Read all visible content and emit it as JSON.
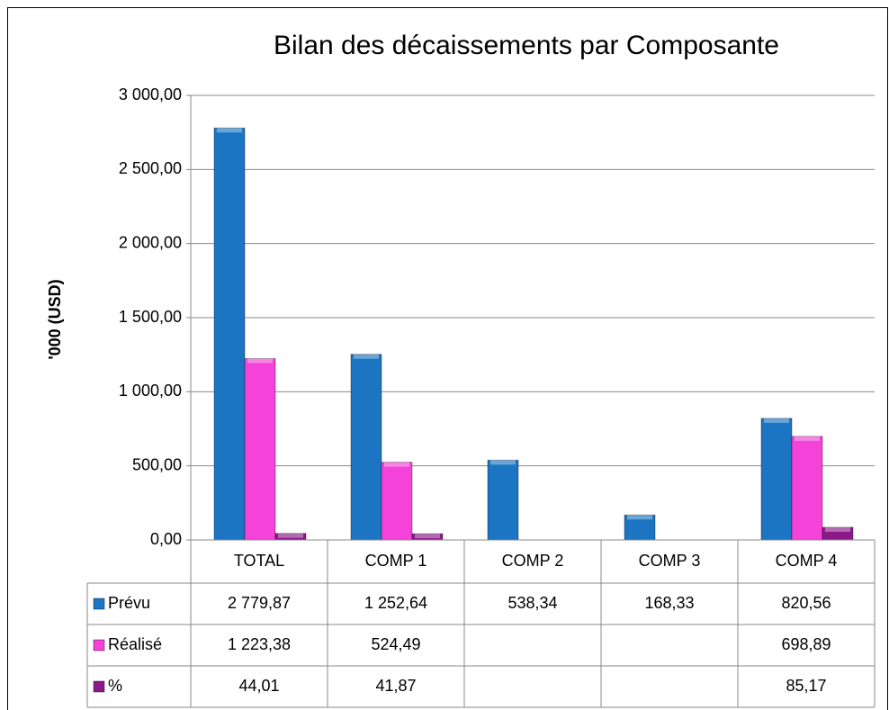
{
  "chart_data": {
    "type": "bar",
    "title": "Bilan des décaissements par Composante",
    "y_label": "'000 (USD)",
    "categories": [
      "TOTAL",
      "COMP 1",
      "COMP 2",
      "COMP 3",
      "COMP 4"
    ],
    "series": [
      {
        "name": "Prévu",
        "color": "#1b75c2",
        "values": [
          2779.87,
          1252.64,
          538.34,
          168.33,
          820.56
        ],
        "value_labels": [
          "2 779,87",
          "1 252,64",
          "538,34",
          "168,33",
          "820,56"
        ]
      },
      {
        "name": "Réalisé",
        "color": "#f542d9",
        "values": [
          1223.38,
          524.49,
          null,
          null,
          698.89
        ],
        "value_labels": [
          "1 223,38",
          "524,49",
          null,
          null,
          "698,89"
        ]
      },
      {
        "name": "%",
        "color": "#8a1a88",
        "values": [
          44.01,
          41.87,
          null,
          null,
          85.17
        ],
        "value_labels": [
          "44,01",
          "41,87",
          null,
          null,
          "85,17"
        ]
      }
    ],
    "ylim": [
      0,
      3000
    ],
    "yticks": [
      {
        "value": 0,
        "label": "0,00"
      },
      {
        "value": 500,
        "label": "500,00"
      },
      {
        "value": 1000,
        "label": "1 000,00"
      },
      {
        "value": 1500,
        "label": "1 500,00"
      },
      {
        "value": 2000,
        "label": "2 000,00"
      },
      {
        "value": 2500,
        "label": "2 500,00"
      },
      {
        "value": 3000,
        "label": "3 000,00"
      }
    ],
    "grid": true,
    "data_table": true
  }
}
